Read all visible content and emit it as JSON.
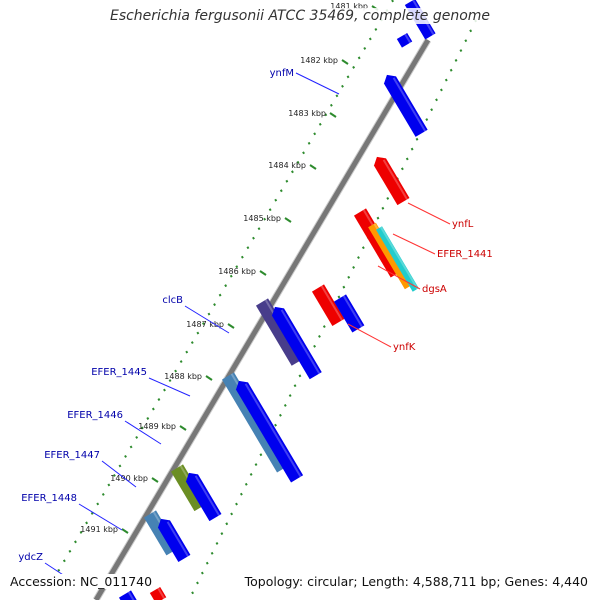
{
  "header": {
    "title": "Escherichia fergusonii ATCC 35469, complete genome"
  },
  "footer": {
    "accession": "Accession: NC_011740",
    "summary": "Topology: circular; Length: 4,588,711 bp; Genes: 4,440"
  },
  "colors": {
    "background": "#ffffff",
    "backbone": "#888888",
    "tick_dots": "#2e8b2e",
    "forward_cds": "#0000ee",
    "reverse_cds": "#ee0000",
    "label_forward": "#0000aa",
    "label_reverse": "#cc0000"
  },
  "ticks": [
    {
      "label": "1481 kbp",
      "kbp": 1481
    },
    {
      "label": "1482 kbp",
      "kbp": 1482
    },
    {
      "label": "1483 kbp",
      "kbp": 1483
    },
    {
      "label": "1484 kbp",
      "kbp": 1484
    },
    {
      "label": "1485 kbp",
      "kbp": 1485
    },
    {
      "label": "1486 kbp",
      "kbp": 1486
    },
    {
      "label": "1487 kbp",
      "kbp": 1487
    },
    {
      "label": "1488 kbp",
      "kbp": 1488
    },
    {
      "label": "1489 kbp",
      "kbp": 1489
    },
    {
      "label": "1490 kbp",
      "kbp": 1490
    },
    {
      "label": "1491 kbp",
      "kbp": 1491
    }
  ],
  "labels": [
    {
      "name": "ynfM",
      "strand": "forward"
    },
    {
      "name": "clcB",
      "strand": "forward"
    },
    {
      "name": "EFER_1445",
      "strand": "forward"
    },
    {
      "name": "EFER_1446",
      "strand": "forward"
    },
    {
      "name": "EFER_1447",
      "strand": "forward"
    },
    {
      "name": "EFER_1448",
      "strand": "forward"
    },
    {
      "name": "ydcZ",
      "strand": "forward"
    },
    {
      "name": "ynfL",
      "strand": "reverse"
    },
    {
      "name": "EFER_1441",
      "strand": "reverse"
    },
    {
      "name": "dgsA",
      "strand": "reverse"
    },
    {
      "name": "ynfK",
      "strand": "reverse"
    }
  ]
}
